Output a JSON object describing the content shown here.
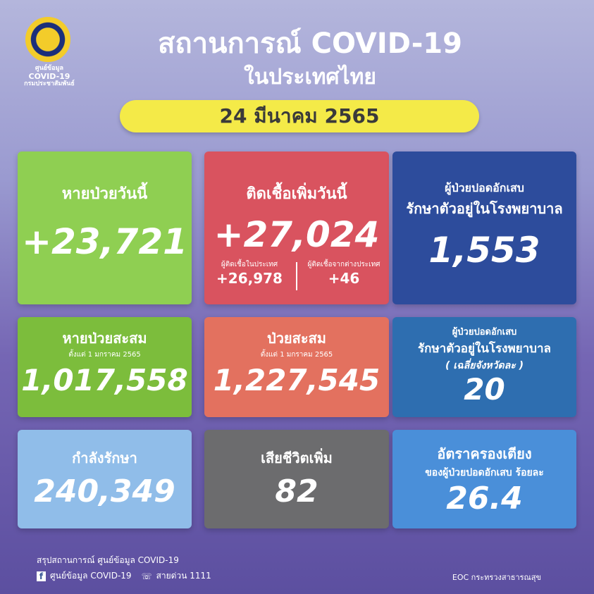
{
  "header": {
    "logo_text": [
      "ศูนย์ข้อมูล",
      "COVID-19",
      "กรมประชาสัมพันธ์"
    ],
    "title": "สถานการณ์ COVID-19",
    "subtitle": "ในประเทศไทย",
    "date": "24 มีนาคม 2565"
  },
  "cards": {
    "recovered_today": {
      "label": "หายป่วยวันนี้",
      "value": "+23,721",
      "color": "#8fcf52"
    },
    "new_cases": {
      "label": "ติดเชื้อเพิ่มวันนี้",
      "value": "+27,024",
      "color": "#d9535f",
      "local_label": "ผู้ติดเชื้อในประเทศ",
      "local_value": "+26,978",
      "imported_label": "ผู้ติดเชื้อจากต่างประเทศ",
      "imported_value": "+46"
    },
    "pneumonia": {
      "label1": "ผู้ป่วยปอดอักเสบ",
      "label2": "รักษาตัวอยู่ในโรงพยาบาล",
      "value": "1,553",
      "color": "#2d4c9c"
    },
    "cumulative_recovered": {
      "label": "หายป่วยสะสม",
      "sub": "ตั้งแต่ 1 มกราคม 2565",
      "value": "1,017,558",
      "color": "#7cbd3c"
    },
    "cumulative_cases": {
      "label": "ป่วยสะสม",
      "sub": "ตั้งแต่ 1 มกราคม 2565",
      "value": "1,227,545",
      "color": "#e3715f"
    },
    "pneumonia_avg": {
      "label1": "ผู้ป่วยปอดอักเสบ",
      "label2": "รักษาตัวอยู่ในโรงพยาบาล",
      "label3": "( เฉลี่ยจังหวัดละ )",
      "value": "20",
      "color": "#2e6eb0"
    },
    "in_treatment": {
      "label": "กำลังรักษา",
      "value": "240,349",
      "color": "#90bde9"
    },
    "deaths": {
      "label": "เสียชีวิตเพิ่ม",
      "value": "82",
      "color": "#6c6c6e"
    },
    "bed_rate": {
      "label1": "อัตราครองเตียง",
      "label2": "ของผู้ป่วยปอดอักเสบ ร้อยละ",
      "value": "26.4",
      "color": "#4a8fd9"
    }
  },
  "footer": {
    "line1": "สรุปสถานการณ์ ศูนย์ข้อมูล COVID-19",
    "facebook": "ศูนย์ข้อมูล COVID-19",
    "hotline": "สายด่วน 1111",
    "credit": "EOC กระทรวงสาธารณสุข"
  }
}
